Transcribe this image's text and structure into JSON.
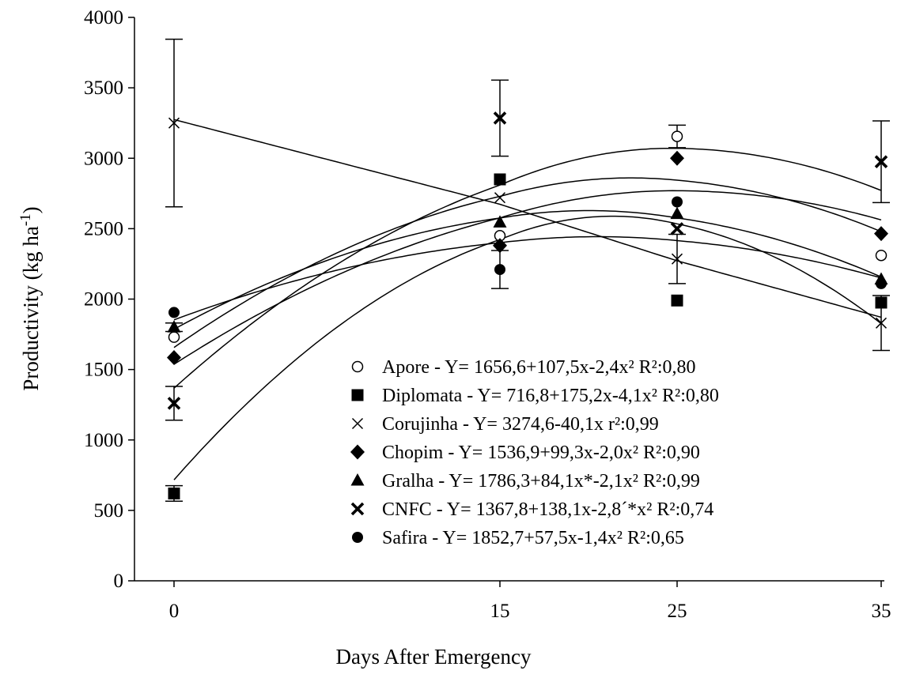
{
  "chart_data": {
    "type": "scatter",
    "title": "",
    "xlabel": "Days After Emergency",
    "ylabel_text": "Productivity (kg ha",
    "ylabel_sup": "-1",
    "ylabel_close": ")",
    "x_ticks": [
      0,
      15,
      25,
      35
    ],
    "x_tick_labels": [
      "0",
      "15",
      "25",
      "35"
    ],
    "y_ticks": [
      0,
      500,
      1000,
      1500,
      2000,
      2500,
      3000,
      3500,
      4000
    ],
    "y_tick_labels": [
      "0",
      "500",
      "1000",
      "1500",
      "2000",
      "2500",
      "3000",
      "3500",
      "4000"
    ],
    "ylim": [
      0,
      4000
    ],
    "grid": false,
    "legend_position": "bottom-right",
    "series": [
      {
        "name": "Apore - Y= 1656,6+107,5x-2,4x² R²:0,80",
        "marker": "open-circle",
        "x": [
          0,
          15,
          25,
          35
        ],
        "y": [
          1730,
          2450,
          3155,
          2310
        ],
        "err": [
          0,
          0,
          80,
          0
        ],
        "fit": {
          "kind": "quadratic",
          "a": 1656.6,
          "b": 107.5,
          "c": -2.4
        }
      },
      {
        "name": "Diplomata - Y= 716,8+175,2x-4,1x² R²:0,80",
        "marker": "filled-square",
        "x": [
          0,
          15,
          25,
          35
        ],
        "y": [
          620,
          2850,
          1990,
          1975
        ],
        "err": [
          55,
          0,
          0,
          0
        ],
        "fit": {
          "kind": "quadratic",
          "a": 716.8,
          "b": 175.2,
          "c": -4.1
        }
      },
      {
        "name": "Corujinha - Y= 3274,6-40,1x r²:0,99",
        "marker": "x",
        "x": [
          0,
          15,
          25,
          35
        ],
        "y": [
          3250,
          2720,
          2285,
          1830
        ],
        "err": [
          595,
          0,
          175,
          195
        ],
        "fit": {
          "kind": "linear",
          "a": 3274.6,
          "b": -40.1
        }
      },
      {
        "name": "Chopim - Y= 1536,9+99,3x-2,0x² R²:0,90",
        "marker": "filled-diamond",
        "x": [
          0,
          15,
          25,
          35
        ],
        "y": [
          1585,
          2380,
          3000,
          2465
        ],
        "err": [
          0,
          0,
          0,
          0
        ],
        "fit": {
          "kind": "quadratic",
          "a": 1536.9,
          "b": 99.3,
          "c": -2.0
        }
      },
      {
        "name": "Gralha - Y= 1786,3+84,1x*-2,1x² R²:0,99",
        "marker": "filled-triangle",
        "x": [
          0,
          15,
          25,
          35
        ],
        "y": [
          1800,
          2545,
          2605,
          2140
        ],
        "err": [
          30,
          0,
          0,
          0
        ],
        "fit": {
          "kind": "quadratic",
          "a": 1786.3,
          "b": 84.1,
          "c": -2.1
        }
      },
      {
        "name": "CNFC - Y= 1367,8+138,1x-2,8´*x² R²:0,74",
        "marker": "bold-x",
        "x": [
          0,
          15,
          25,
          35
        ],
        "y": [
          1260,
          3285,
          2500,
          2975
        ],
        "err": [
          120,
          270,
          0,
          290
        ],
        "fit": {
          "kind": "quadratic",
          "a": 1367.8,
          "b": 138.1,
          "c": -2.8
        }
      },
      {
        "name": "Safira - Y= 1852,7+57,5x-1,4x² R²:0,65",
        "marker": "filled-circle",
        "x": [
          0,
          15,
          25,
          35
        ],
        "y": [
          1905,
          2210,
          2690,
          2110
        ],
        "err": [
          0,
          135,
          0,
          0
        ],
        "fit": {
          "kind": "quadratic",
          "a": 1852.7,
          "b": 57.5,
          "c": -1.4
        }
      }
    ]
  }
}
